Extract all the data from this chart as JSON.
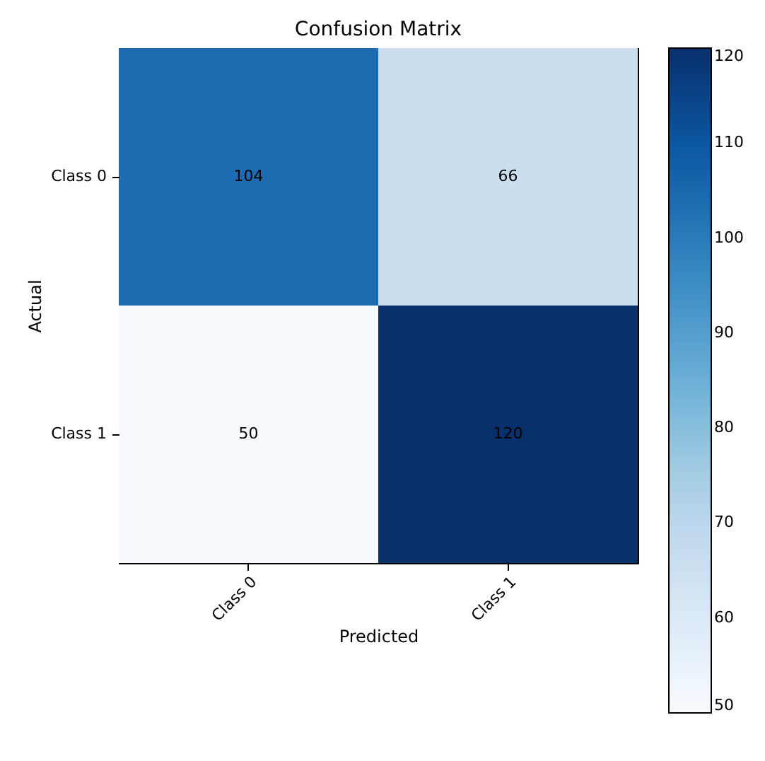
{
  "chart_data": {
    "type": "heatmap",
    "title": "Confusion Matrix",
    "xlabel": "Predicted",
    "ylabel": "Actual",
    "categories": [
      "Class 0",
      "Class 1"
    ],
    "y_categories": [
      "Class 0",
      "Class 1"
    ],
    "cells": [
      [
        104,
        66
      ],
      [
        50,
        120
      ]
    ],
    "clim": [
      50,
      120
    ],
    "cticks": [
      50,
      60,
      70,
      80,
      90,
      100,
      110,
      120
    ],
    "data_labels": true
  }
}
